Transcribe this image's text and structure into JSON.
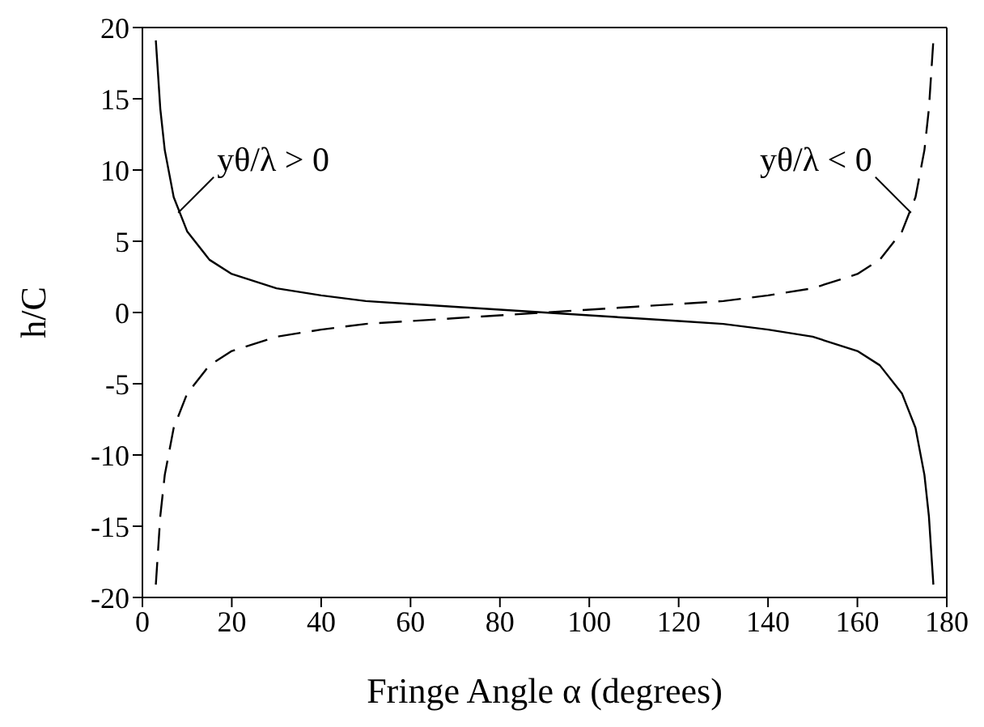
{
  "chart_data": {
    "type": "line",
    "xlabel": "Fringe Angle α (degrees)",
    "ylabel": "h/C",
    "xlim": [
      0,
      180
    ],
    "xticks": [
      0,
      20,
      40,
      60,
      80,
      100,
      120,
      140,
      160,
      180
    ],
    "ylim": [
      -20,
      20
    ],
    "yticks": [
      -20,
      -15,
      -10,
      -5,
      0,
      5,
      10,
      15,
      20
    ],
    "marker": "none",
    "series": [
      {
        "color": "#000000",
        "line_style": "solid",
        "x": [
          3,
          4,
          5,
          7,
          10,
          15,
          20,
          30,
          40,
          50,
          60,
          70,
          80,
          90,
          100,
          110,
          120,
          130,
          140,
          150,
          160,
          165,
          170,
          173,
          175,
          176,
          177
        ],
        "values": [
          19.1,
          14.3,
          11.4,
          8.1,
          5.7,
          3.7,
          2.7,
          1.7,
          1.2,
          0.8,
          0.6,
          0.4,
          0.2,
          0,
          -0.2,
          -0.4,
          -0.6,
          -0.8,
          -1.2,
          -1.7,
          -2.7,
          -3.7,
          -5.7,
          -8.1,
          -11.4,
          -14.3,
          -19.1
        ]
      },
      {
        "color": "#000000",
        "line_style": "dashed",
        "x": [
          3,
          4,
          5,
          7,
          10,
          15,
          20,
          30,
          40,
          50,
          60,
          70,
          80,
          90,
          100,
          110,
          120,
          130,
          140,
          150,
          160,
          165,
          170,
          173,
          175,
          176,
          177
        ],
        "values": [
          -19.1,
          -14.3,
          -11.4,
          -8.1,
          -5.7,
          -3.7,
          -2.7,
          -1.7,
          -1.2,
          -0.8,
          -0.6,
          -0.4,
          -0.2,
          0,
          0.2,
          0.4,
          0.6,
          0.8,
          1.2,
          1.7,
          2.7,
          3.7,
          5.7,
          8.1,
          11.4,
          14.3,
          19.1
        ]
      }
    ],
    "annotations": [
      {
        "text": "yθ/λ > 0",
        "x": 8,
        "y": 7
      },
      {
        "text": "yθ/λ < 0",
        "x": 172,
        "y": 7
      }
    ]
  }
}
